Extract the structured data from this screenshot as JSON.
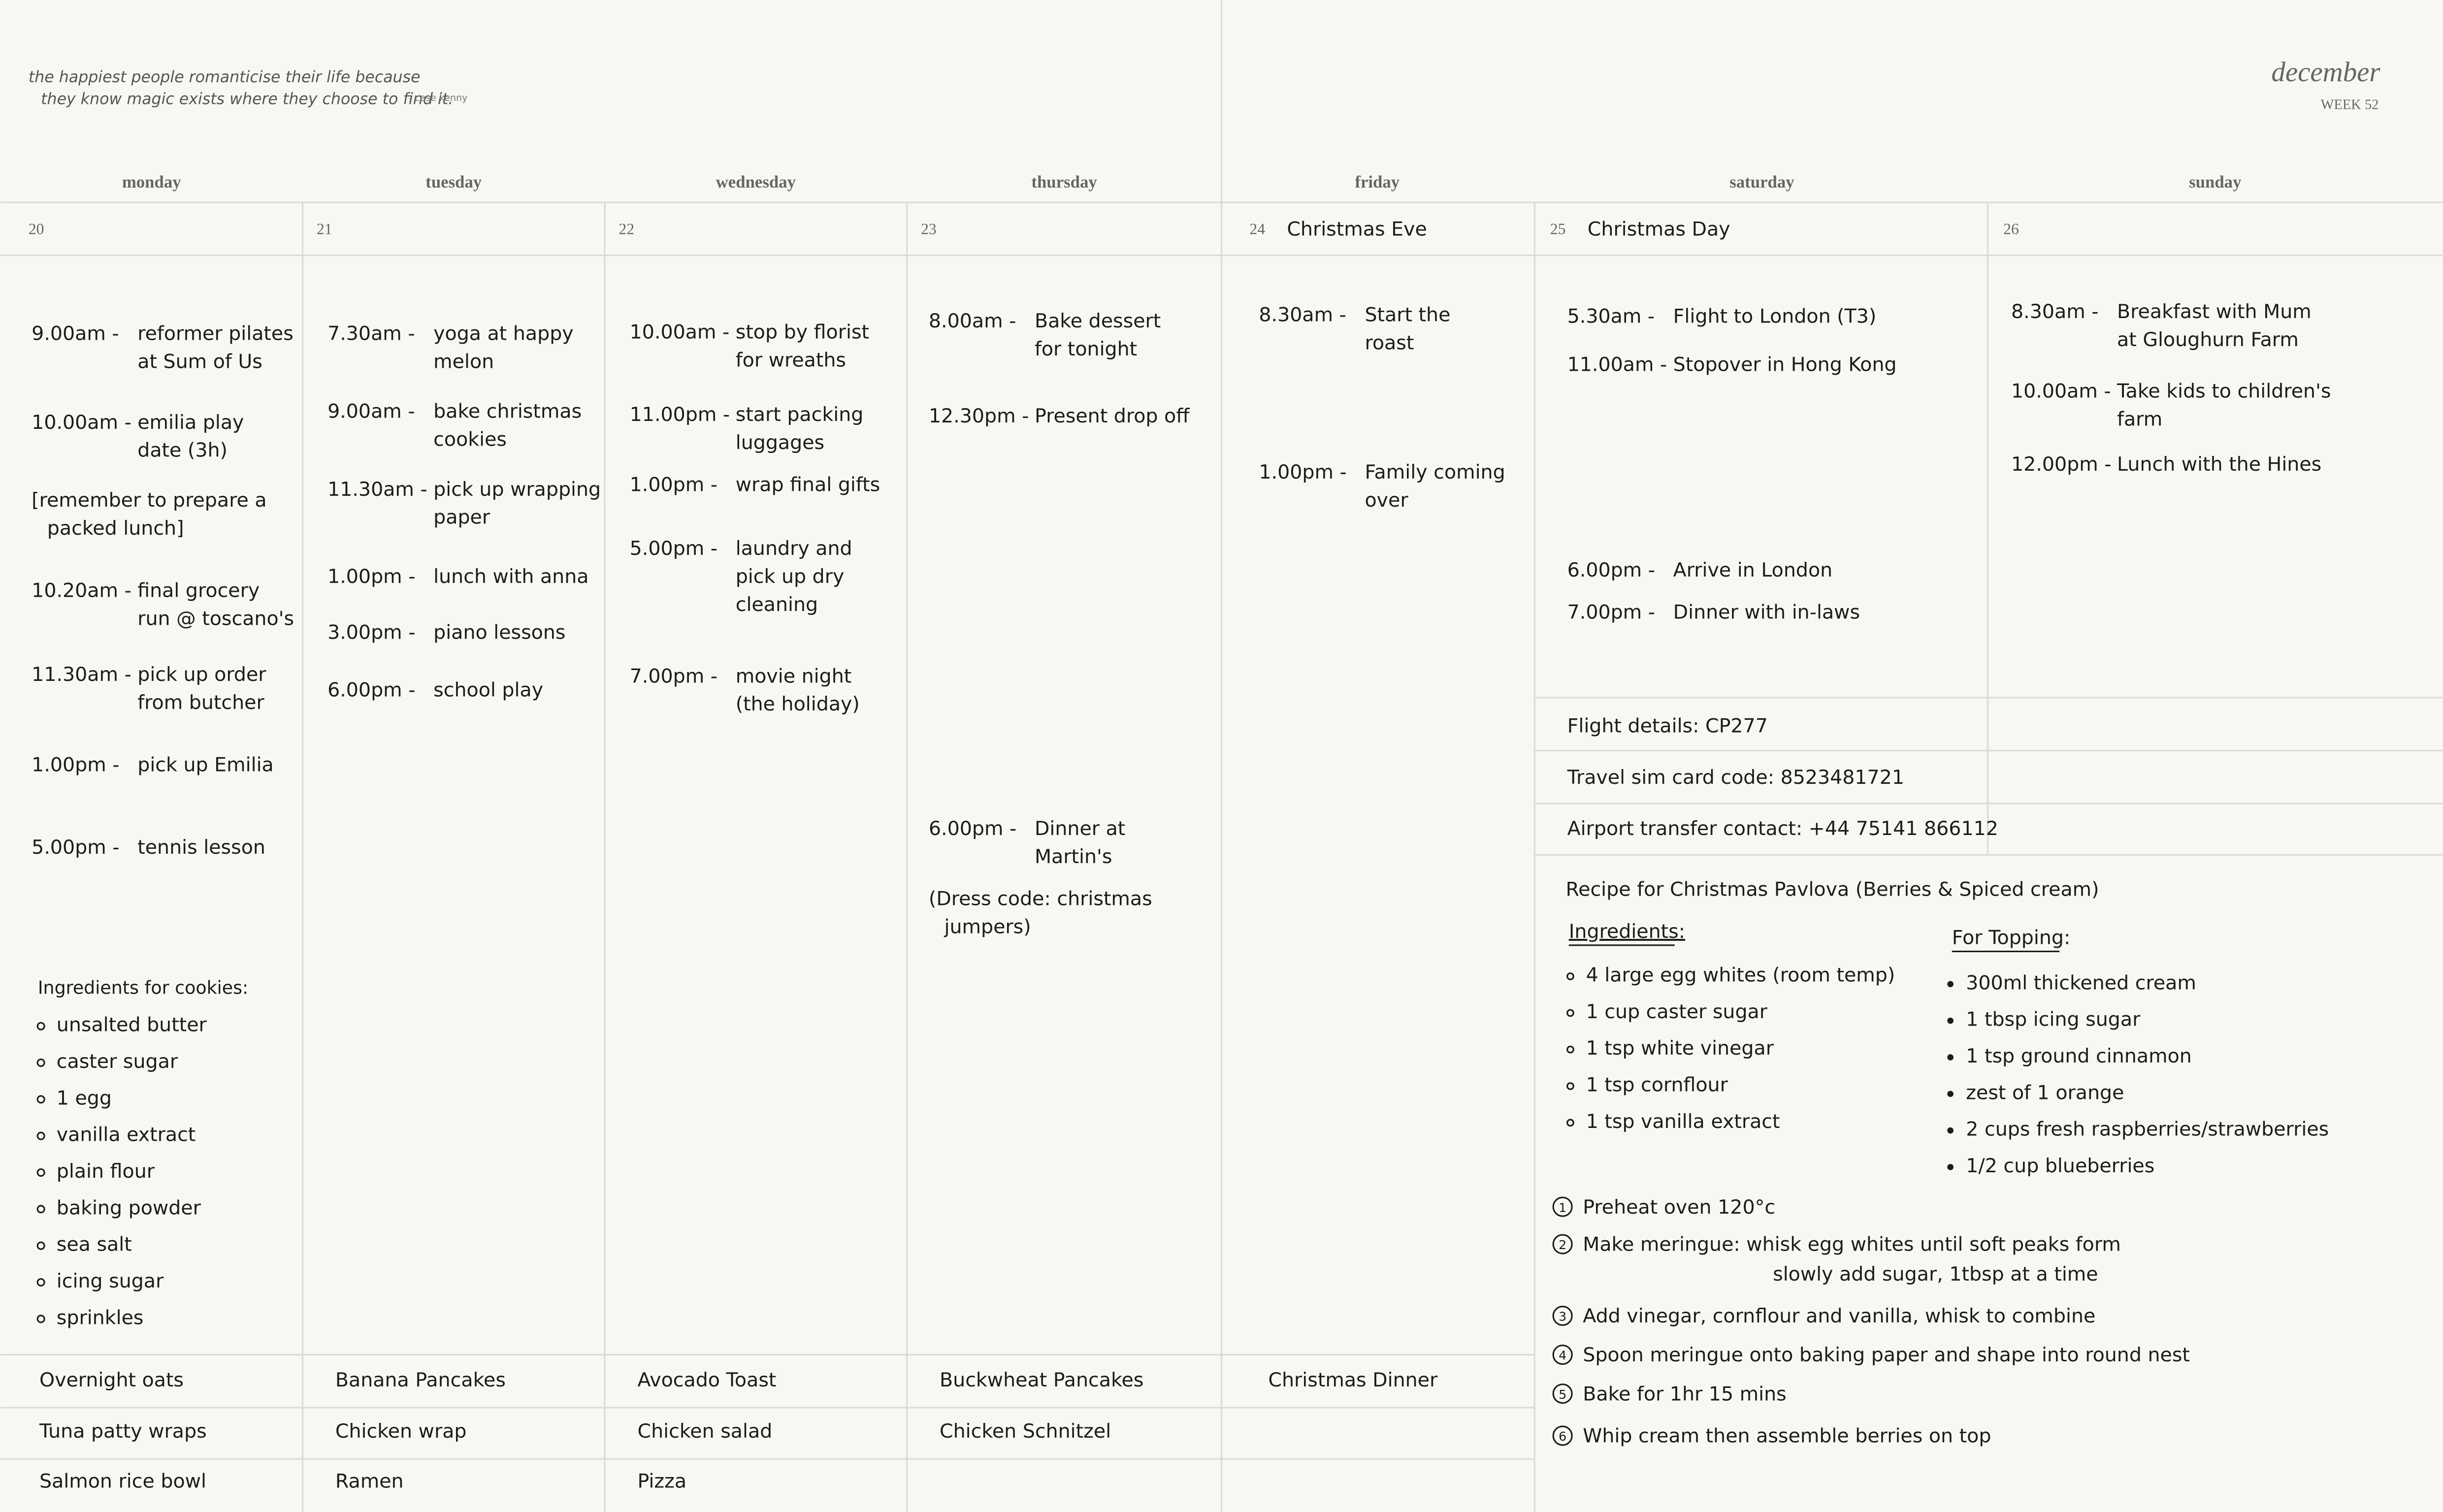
{
  "quote": {
    "lines": [
      "the happiest people romanticise their life because",
      "they know magic exists where they choose to find it."
    ],
    "author": "- case kenny"
  },
  "header": {
    "month": "december",
    "week": "WEEK 52"
  },
  "days": [
    {
      "name": "monday",
      "date": "20",
      "events": [
        {
          "time": "9.00am -",
          "text": [
            "reformer pilates",
            "at Sum of Us"
          ]
        },
        {
          "time": "10.00am -",
          "text": [
            "emilia play",
            "date (3h)"
          ]
        },
        {
          "text": [
            "[remember to prepare a",
            "packed lunch]"
          ]
        },
        {
          "time": "10.20am -",
          "text": [
            "final grocery",
            "run @ toscano's"
          ]
        },
        {
          "time": "11.30am -",
          "text": [
            "pick up order",
            "from butcher"
          ]
        },
        {
          "time": "1.00pm -",
          "text": [
            "pick up Emilia"
          ]
        },
        {
          "time": "5.00pm -",
          "text": [
            "tennis lesson"
          ]
        }
      ],
      "meals": [
        "Overnight oats",
        "Tuna patty wraps",
        "Salmon rice bowl"
      ]
    },
    {
      "name": "tuesday",
      "date": "21",
      "events": [
        {
          "time": "7.30am -",
          "text": [
            "yoga at happy",
            "melon"
          ]
        },
        {
          "time": "9.00am -",
          "text": [
            "bake christmas",
            "cookies"
          ]
        },
        {
          "time": "11.30am -",
          "text": [
            "pick up wrapping",
            "paper"
          ]
        },
        {
          "time": "1.00pm -",
          "text": [
            "lunch with anna"
          ]
        },
        {
          "time": "3.00pm -",
          "text": [
            "piano lessons"
          ]
        },
        {
          "time": "6.00pm -",
          "text": [
            "school play"
          ]
        }
      ],
      "meals": [
        "Banana Pancakes",
        "Chicken wrap",
        "Ramen"
      ]
    },
    {
      "name": "wednesday",
      "date": "22",
      "events": [
        {
          "time": "10.00am -",
          "text": [
            "stop by florist",
            "for wreaths"
          ]
        },
        {
          "time": "11.00pm -",
          "text": [
            "start packing",
            "luggages"
          ]
        },
        {
          "time": "1.00pm -",
          "text": [
            "wrap final gifts"
          ]
        },
        {
          "time": "5.00pm -",
          "text": [
            "laundry and",
            "pick up dry",
            "cleaning"
          ]
        },
        {
          "time": "7.00pm -",
          "text": [
            "movie night",
            "(the holiday)"
          ]
        }
      ],
      "meals": [
        "Avocado Toast",
        "Chicken salad",
        "Pizza"
      ]
    },
    {
      "name": "thursday",
      "date": "23",
      "events": [
        {
          "time": "8.00am -",
          "text": [
            "Bake dessert",
            "for tonight"
          ]
        },
        {
          "time": "12.30pm -",
          "text": [
            "Present drop off"
          ]
        },
        {
          "time": "6.00pm -",
          "text": [
            "Dinner at",
            "Martin's"
          ]
        },
        {
          "text": [
            "(Dress code: christmas",
            "jumpers)"
          ]
        }
      ],
      "meals": [
        "Buckwheat Pancakes",
        "Chicken Schnitzel"
      ]
    },
    {
      "name": "friday",
      "date": "24",
      "note": "Christmas Eve",
      "events": [
        {
          "time": "8.30am -",
          "text": [
            "Start the",
            "roast"
          ]
        },
        {
          "time": "1.00pm -",
          "text": [
            "Family coming",
            "over"
          ]
        }
      ],
      "meals": [
        "Christmas Dinner"
      ]
    },
    {
      "name": "saturday",
      "date": "25",
      "note": "Christmas Day",
      "events": [
        {
          "time": "5.30am -",
          "text": [
            "Flight to London (T3)"
          ]
        },
        {
          "time": "11.00am -",
          "text": [
            "Stopover in Hong Kong"
          ]
        },
        {
          "time": "6.00pm -",
          "text": [
            "Arrive in London"
          ]
        },
        {
          "time": "7.00pm -",
          "text": [
            "Dinner with in-laws"
          ]
        }
      ]
    },
    {
      "name": "sunday",
      "date": "26",
      "events": [
        {
          "time": "8.30am -",
          "text": [
            "Breakfast with Mum",
            "at Gloughurn Farm"
          ]
        },
        {
          "time": "10.00am -",
          "text": [
            "Take kids to children's",
            "farm"
          ]
        },
        {
          "time": "12.00pm -",
          "text": [
            "Lunch with the Hines"
          ]
        }
      ]
    }
  ],
  "cookies": {
    "title": "Ingredients for cookies:",
    "items": [
      "unsalted butter",
      "caster sugar",
      "1 egg",
      "vanilla extract",
      "plain flour",
      "baking powder",
      "sea salt",
      "icing sugar",
      "sprinkles"
    ]
  },
  "notes": [
    "Flight details: CP277",
    "Travel sim card code: 8523481721",
    "Airport transfer contact: +44 75141 866112"
  ],
  "recipe": {
    "title": "Recipe for Christmas Pavlova (Berries & Spiced cream)",
    "ingredients": {
      "heading": "Ingredients:",
      "items": [
        "4 large egg whites (room temp)",
        "1 cup caster sugar",
        "1 tsp white vinegar",
        "1 tsp cornflour",
        "1 tsp vanilla extract"
      ]
    },
    "topping": {
      "heading": "For Topping:",
      "items": [
        "300ml thickened cream",
        "1 tbsp icing sugar",
        "1 tsp ground cinnamon",
        "zest of 1 orange",
        "2 cups fresh raspberries/strawberries",
        "1/2 cup blueberries"
      ]
    },
    "steps": [
      {
        "num": "1",
        "text": [
          "Preheat oven 120°c"
        ]
      },
      {
        "num": "2",
        "text": [
          "Make meringue: whisk egg whites until soft peaks form",
          "slowly add sugar, 1tbsp at a time"
        ]
      },
      {
        "num": "3",
        "text": [
          "Add vinegar, cornflour and vanilla, whisk to combine"
        ]
      },
      {
        "num": "4",
        "text": [
          "Spoon meringue onto baking paper and shape into round nest"
        ]
      },
      {
        "num": "5",
        "text": [
          "Bake for 1hr 15 mins"
        ]
      },
      {
        "num": "6",
        "text": [
          "Whip cream then assemble berries on top"
        ]
      }
    ]
  }
}
